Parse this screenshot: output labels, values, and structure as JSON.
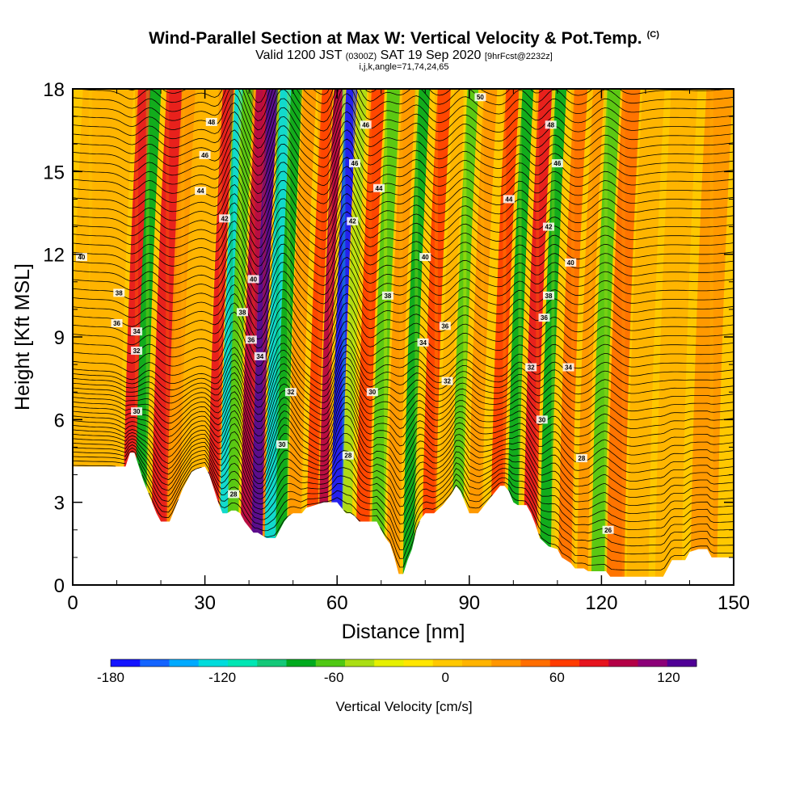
{
  "header": {
    "title": "Wind-Parallel Section at Max W: Vertical Velocity & Pot.Temp.",
    "title_mark": "(C)",
    "subtitle_a": "Valid 1200 JST",
    "subtitle_b": "(0300Z)",
    "subtitle_c": "SAT 19 Sep 2020",
    "subtitle_d": "[9hrFcst@2232z]",
    "subtitle2": "i,j,k,angle=71,74,24,65"
  },
  "chart_data": {
    "type": "heatmap",
    "title": "Wind-Parallel Section at Max W: Vertical Velocity & Pot.Temp.",
    "xlabel": "Distance [nm]",
    "ylabel": "Height [Kft MSL]",
    "xlim": [
      0,
      150
    ],
    "ylim": [
      0,
      18
    ],
    "x_ticks": [
      "0",
      "30",
      "60",
      "90",
      "120",
      "150"
    ],
    "x_tick_values": [
      0,
      30,
      60,
      90,
      120,
      150
    ],
    "y_ticks": [
      "0",
      "3",
      "6",
      "9",
      "12",
      "15",
      "18"
    ],
    "y_tick_values": [
      0,
      3,
      6,
      9,
      12,
      15,
      18
    ],
    "colorbar": {
      "title": "Vertical Velocity [cm/s]",
      "range": [
        -180,
        135
      ],
      "tick_labels": [
        "-180",
        "-120",
        "-60",
        "0",
        "60",
        "120"
      ],
      "tick_values": [
        -180,
        -120,
        -60,
        0,
        60,
        120
      ],
      "colors": [
        "#1414ff",
        "#1464ff",
        "#00aaff",
        "#00dcdc",
        "#00e6b4",
        "#14c878",
        "#00aa1e",
        "#50c814",
        "#aade14",
        "#e6f000",
        "#ffe600",
        "#ffc800",
        "#ffb400",
        "#ff9600",
        "#ff6e00",
        "#ff3c00",
        "#e6141e",
        "#b40046",
        "#8c0078",
        "#500096"
      ]
    },
    "vertical_velocity_bands": [
      {
        "x": 4,
        "w": 7,
        "value": 10
      },
      {
        "x": 8,
        "w": 8,
        "value": 20
      },
      {
        "x": 14.5,
        "w": 3,
        "value": 85
      },
      {
        "x": 17,
        "w": 2.5,
        "value": -70
      },
      {
        "x": 21.5,
        "w": 4,
        "value": 75
      },
      {
        "x": 25,
        "w": 4,
        "value": 30
      },
      {
        "x": 29,
        "w": 6,
        "value": 15
      },
      {
        "x": 33.5,
        "w": 2.5,
        "value": 80
      },
      {
        "x": 36,
        "w": 2,
        "value": -120
      },
      {
        "x": 38,
        "w": 2.5,
        "value": -60
      },
      {
        "x": 41,
        "w": 2.5,
        "value": 95
      },
      {
        "x": 43.5,
        "w": 2.5,
        "value": 125
      },
      {
        "x": 46.5,
        "w": 2.5,
        "value": -130
      },
      {
        "x": 49,
        "w": 2.5,
        "value": -70
      },
      {
        "x": 52,
        "w": 3,
        "value": 30
      },
      {
        "x": 56,
        "w": 2.5,
        "value": 70
      },
      {
        "x": 58.5,
        "w": 2,
        "value": 90
      },
      {
        "x": 61.5,
        "w": 2.5,
        "value": -170
      },
      {
        "x": 64,
        "w": 2,
        "value": -50
      },
      {
        "x": 67.5,
        "w": 3,
        "value": 70
      },
      {
        "x": 71,
        "w": 3,
        "value": -55
      },
      {
        "x": 74.5,
        "w": 3,
        "value": 40
      },
      {
        "x": 78,
        "w": 2.5,
        "value": -75
      },
      {
        "x": 82.5,
        "w": 3,
        "value": 60
      },
      {
        "x": 86,
        "w": 2.5,
        "value": 15
      },
      {
        "x": 89,
        "w": 2.5,
        "value": -60
      },
      {
        "x": 93,
        "w": 3,
        "value": 30
      },
      {
        "x": 98,
        "w": 3,
        "value": 65
      },
      {
        "x": 101.5,
        "w": 2.5,
        "value": -75
      },
      {
        "x": 105.5,
        "w": 3,
        "value": 75
      },
      {
        "x": 109,
        "w": 2.5,
        "value": -70
      },
      {
        "x": 113.5,
        "w": 3,
        "value": 55
      },
      {
        "x": 117.5,
        "w": 2.5,
        "value": 35
      },
      {
        "x": 121,
        "w": 3,
        "value": -65
      },
      {
        "x": 125,
        "w": 4,
        "value": 45
      },
      {
        "x": 130,
        "w": 5,
        "value": 20
      },
      {
        "x": 137,
        "w": 6,
        "value": 15
      },
      {
        "x": 145,
        "w": 6,
        "value": 25
      }
    ],
    "terrain_height": [
      [
        0,
        4.3
      ],
      [
        12,
        4.3
      ],
      [
        13,
        4.8
      ],
      [
        14,
        4.8
      ],
      [
        15,
        4.3
      ],
      [
        16,
        3.8
      ],
      [
        17,
        3.4
      ],
      [
        18,
        3.0
      ],
      [
        19,
        2.6
      ],
      [
        20,
        2.3
      ],
      [
        22,
        2.3
      ],
      [
        23,
        2.7
      ],
      [
        24,
        3.1
      ],
      [
        25,
        3.5
      ],
      [
        26,
        3.8
      ],
      [
        27,
        4.1
      ],
      [
        28,
        4.2
      ],
      [
        30,
        4.3
      ],
      [
        31,
        4.0
      ],
      [
        32,
        3.5
      ],
      [
        33,
        3.0
      ],
      [
        34,
        2.6
      ],
      [
        35,
        2.6
      ],
      [
        36,
        2.7
      ],
      [
        37,
        2.7
      ],
      [
        38,
        2.6
      ],
      [
        39,
        2.3
      ],
      [
        40,
        2.1
      ],
      [
        41,
        1.9
      ],
      [
        42,
        1.9
      ],
      [
        44,
        1.7
      ],
      [
        46,
        1.7
      ],
      [
        47,
        2.0
      ],
      [
        48,
        2.3
      ],
      [
        49,
        2.5
      ],
      [
        50,
        2.6
      ],
      [
        51,
        2.6
      ],
      [
        52,
        2.6
      ],
      [
        53,
        2.8
      ],
      [
        55,
        2.9
      ],
      [
        57,
        3.0
      ],
      [
        58,
        3.0
      ],
      [
        59,
        3.0
      ],
      [
        60,
        3.0
      ],
      [
        61,
        2.8
      ],
      [
        62,
        2.6
      ],
      [
        63,
        2.6
      ],
      [
        64,
        2.5
      ],
      [
        65,
        2.3
      ],
      [
        66,
        2.3
      ],
      [
        67,
        2.3
      ],
      [
        69,
        2.3
      ],
      [
        70,
        2.0
      ],
      [
        71,
        1.7
      ],
      [
        72,
        1.5
      ],
      [
        73,
        1.0
      ],
      [
        74,
        0.4
      ],
      [
        75,
        0.4
      ],
      [
        76,
        0.9
      ],
      [
        77,
        1.3
      ],
      [
        78,
        2.0
      ],
      [
        79,
        2.4
      ],
      [
        80,
        2.6
      ],
      [
        82,
        2.6
      ],
      [
        84,
        2.9
      ],
      [
        86,
        3.3
      ],
      [
        87,
        3.6
      ],
      [
        88,
        3.4
      ],
      [
        89,
        3.0
      ],
      [
        90,
        2.6
      ],
      [
        92,
        2.6
      ],
      [
        94,
        3.0
      ],
      [
        96,
        3.4
      ],
      [
        97,
        3.6
      ],
      [
        98,
        3.6
      ],
      [
        99,
        3.4
      ],
      [
        100,
        3.0
      ],
      [
        101,
        2.9
      ],
      [
        103,
        2.9
      ],
      [
        104,
        2.6
      ],
      [
        105,
        2.2
      ],
      [
        106,
        1.7
      ],
      [
        108,
        1.4
      ],
      [
        110,
        1.3
      ],
      [
        111,
        1.0
      ],
      [
        113,
        0.8
      ],
      [
        114,
        0.6
      ],
      [
        116,
        0.6
      ],
      [
        117,
        0.5
      ],
      [
        118,
        0.5
      ],
      [
        120,
        0.5
      ],
      [
        121,
        0.5
      ],
      [
        122,
        0.3
      ],
      [
        124,
        0.3
      ],
      [
        126,
        0.3
      ],
      [
        128,
        0.3
      ],
      [
        130,
        0.3
      ],
      [
        132,
        0.3
      ],
      [
        134,
        0.3
      ],
      [
        135,
        0.6
      ],
      [
        136,
        0.9
      ],
      [
        137,
        0.9
      ],
      [
        139,
        0.9
      ],
      [
        140,
        1.2
      ],
      [
        142,
        1.3
      ],
      [
        144,
        1.3
      ],
      [
        145,
        1.0
      ],
      [
        147,
        1.0
      ],
      [
        150,
        1.0
      ]
    ],
    "theta_contour_labels": [
      {
        "x": 31.5,
        "y": 16.8,
        "label": "48"
      },
      {
        "x": 30,
        "y": 15.6,
        "label": "46"
      },
      {
        "x": 66.5,
        "y": 16.7,
        "label": "46"
      },
      {
        "x": 64,
        "y": 15.3,
        "label": "46"
      },
      {
        "x": 92.5,
        "y": 17.7,
        "label": "50"
      },
      {
        "x": 108.5,
        "y": 16.7,
        "label": "48"
      },
      {
        "x": 110,
        "y": 15.3,
        "label": "46"
      },
      {
        "x": 29,
        "y": 14.3,
        "label": "44"
      },
      {
        "x": 69.5,
        "y": 14.4,
        "label": "44"
      },
      {
        "x": 99,
        "y": 14.0,
        "label": "44"
      },
      {
        "x": 34.5,
        "y": 13.3,
        "label": "42"
      },
      {
        "x": 63.5,
        "y": 13.2,
        "label": "42"
      },
      {
        "x": 108,
        "y": 13.0,
        "label": "42"
      },
      {
        "x": 2,
        "y": 11.9,
        "label": "40"
      },
      {
        "x": 41,
        "y": 11.1,
        "label": "40"
      },
      {
        "x": 80,
        "y": 11.9,
        "label": "40"
      },
      {
        "x": 113,
        "y": 11.7,
        "label": "40"
      },
      {
        "x": 10.5,
        "y": 10.6,
        "label": "38"
      },
      {
        "x": 38.5,
        "y": 9.9,
        "label": "38"
      },
      {
        "x": 71.5,
        "y": 10.5,
        "label": "38"
      },
      {
        "x": 108,
        "y": 10.5,
        "label": "38"
      },
      {
        "x": 10,
        "y": 9.5,
        "label": "36"
      },
      {
        "x": 40.5,
        "y": 8.9,
        "label": "36"
      },
      {
        "x": 84.5,
        "y": 9.4,
        "label": "36"
      },
      {
        "x": 107,
        "y": 9.7,
        "label": "36"
      },
      {
        "x": 14.5,
        "y": 9.2,
        "label": "34"
      },
      {
        "x": 42.5,
        "y": 8.3,
        "label": "34"
      },
      {
        "x": 79.5,
        "y": 8.8,
        "label": "34"
      },
      {
        "x": 112.5,
        "y": 7.9,
        "label": "34"
      },
      {
        "x": 14.5,
        "y": 8.5,
        "label": "32"
      },
      {
        "x": 49.5,
        "y": 7.0,
        "label": "32"
      },
      {
        "x": 85,
        "y": 7.4,
        "label": "32"
      },
      {
        "x": 104,
        "y": 7.9,
        "label": "32"
      },
      {
        "x": 14.5,
        "y": 6.3,
        "label": "30"
      },
      {
        "x": 68,
        "y": 7.0,
        "label": "30"
      },
      {
        "x": 47.5,
        "y": 5.1,
        "label": "30"
      },
      {
        "x": 106.5,
        "y": 6.0,
        "label": "30"
      },
      {
        "x": 62.5,
        "y": 4.7,
        "label": "28"
      },
      {
        "x": 36.5,
        "y": 3.3,
        "label": "28"
      },
      {
        "x": 115.5,
        "y": 4.6,
        "label": "28"
      },
      {
        "x": 121.5,
        "y": 2.0,
        "label": "26"
      }
    ]
  }
}
